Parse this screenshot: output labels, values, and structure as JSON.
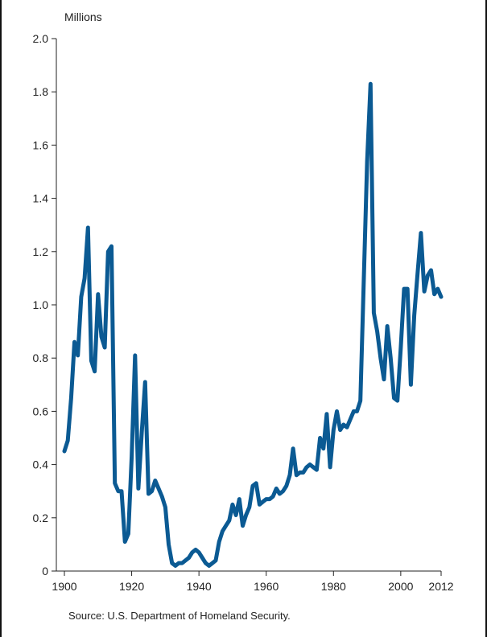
{
  "chart_data": {
    "type": "line",
    "y_unit_label": "Millions",
    "xlim": [
      1900,
      2012
    ],
    "ylim": [
      0,
      2.0
    ],
    "x_ticks": [
      1900,
      1920,
      1940,
      1960,
      1980,
      2000,
      2012
    ],
    "x_tick_labels": [
      "1900",
      "1920",
      "1940",
      "1960",
      "1980",
      "2000",
      "2012"
    ],
    "y_ticks": [
      0,
      0.2,
      0.4,
      0.6,
      0.8,
      1.0,
      1.2,
      1.4,
      1.6,
      1.8,
      2.0
    ],
    "y_tick_labels": [
      "0",
      "0.2",
      "0.4",
      "0.6",
      "0.8",
      "1.0",
      "1.2",
      "1.4",
      "1.6",
      "1.8",
      "2.0"
    ],
    "grid": false,
    "line_color": "#0b5a93",
    "series": [
      {
        "x": [
          1900,
          1901,
          1902,
          1903,
          1904,
          1905,
          1906,
          1907,
          1908,
          1909,
          1910,
          1911,
          1912,
          1913,
          1914,
          1915,
          1916,
          1917,
          1918,
          1919,
          1920,
          1921,
          1922,
          1923,
          1924,
          1925,
          1926,
          1927,
          1928,
          1929,
          1930,
          1931,
          1932,
          1933,
          1934,
          1935,
          1936,
          1937,
          1938,
          1939,
          1940,
          1941,
          1942,
          1943,
          1944,
          1945,
          1946,
          1947,
          1948,
          1949,
          1950,
          1951,
          1952,
          1953,
          1954,
          1955,
          1956,
          1957,
          1958,
          1959,
          1960,
          1961,
          1962,
          1963,
          1964,
          1965,
          1966,
          1967,
          1968,
          1969,
          1970,
          1971,
          1972,
          1973,
          1974,
          1975,
          1976,
          1977,
          1978,
          1979,
          1980,
          1981,
          1982,
          1983,
          1984,
          1985,
          1986,
          1987,
          1988,
          1989,
          1990,
          1991,
          1992,
          1993,
          1994,
          1995,
          1996,
          1997,
          1998,
          1999,
          2000,
          2001,
          2002,
          2003,
          2004,
          2005,
          2006,
          2007,
          2008,
          2009,
          2010,
          2011,
          2012
        ],
        "y": [
          0.45,
          0.49,
          0.65,
          0.86,
          0.81,
          1.03,
          1.1,
          1.29,
          0.79,
          0.75,
          1.04,
          0.88,
          0.84,
          1.2,
          1.22,
          0.33,
          0.3,
          0.3,
          0.11,
          0.14,
          0.43,
          0.81,
          0.31,
          0.52,
          0.71,
          0.29,
          0.3,
          0.34,
          0.31,
          0.28,
          0.24,
          0.1,
          0.03,
          0.02,
          0.03,
          0.03,
          0.04,
          0.05,
          0.07,
          0.08,
          0.07,
          0.05,
          0.03,
          0.02,
          0.03,
          0.04,
          0.11,
          0.15,
          0.17,
          0.19,
          0.25,
          0.21,
          0.27,
          0.17,
          0.21,
          0.24,
          0.32,
          0.33,
          0.25,
          0.26,
          0.27,
          0.27,
          0.28,
          0.31,
          0.29,
          0.3,
          0.32,
          0.36,
          0.46,
          0.36,
          0.37,
          0.37,
          0.39,
          0.4,
          0.39,
          0.38,
          0.5,
          0.46,
          0.59,
          0.39,
          0.53,
          0.6,
          0.53,
          0.55,
          0.54,
          0.57,
          0.6,
          0.6,
          0.64,
          1.09,
          1.54,
          1.83,
          0.97,
          0.9,
          0.8,
          0.72,
          0.92,
          0.8,
          0.65,
          0.64,
          0.84,
          1.06,
          1.06,
          0.7,
          0.96,
          1.12,
          1.27,
          1.05,
          1.11,
          1.13,
          1.04,
          1.06,
          1.03
        ]
      }
    ]
  },
  "source_text": "Source: U.S. Department of Homeland Security."
}
